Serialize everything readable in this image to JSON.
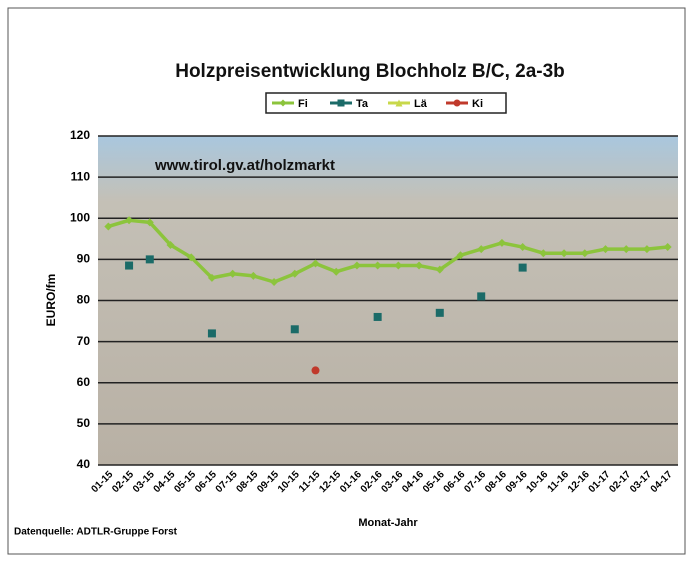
{
  "chart_data": {
    "type": "line",
    "title": "Holzpreisentwicklung Blochholz B/C, 2a-3b",
    "annotation": "www.tirol.gv.at/holzmarkt",
    "source": "Datenquelle: ADTLR-Gruppe Forst",
    "x_label": "Monat-Jahr",
    "y_label": "EURO/fm",
    "categories": [
      "01-15",
      "02-15",
      "03-15",
      "04-15",
      "05-15",
      "06-15",
      "07-15",
      "08-15",
      "09-15",
      "10-15",
      "11-15",
      "12-15",
      "01-16",
      "02-16",
      "03-16",
      "04-16",
      "05-16",
      "06-16",
      "07-16",
      "08-16",
      "09-16",
      "10-16",
      "11-16",
      "12-16",
      "01-17",
      "02-17",
      "03-17",
      "04-17"
    ],
    "series": [
      {
        "name": "Fi",
        "color": "#8cc43c",
        "marker": "diamond",
        "line": true,
        "values": [
          98,
          99.5,
          99,
          93.5,
          90.5,
          85.5,
          86.5,
          86,
          84.5,
          86.5,
          89,
          87,
          88.5,
          88.5,
          88.5,
          88.5,
          87.5,
          91,
          92.5,
          94,
          93,
          91.5,
          91.5,
          91.5,
          92.5,
          92.5,
          92.5,
          93
        ]
      },
      {
        "name": "Ta",
        "color": "#1b6b68",
        "marker": "square",
        "line": false,
        "values": [
          null,
          88.5,
          90,
          null,
          null,
          72,
          null,
          null,
          null,
          73,
          null,
          null,
          null,
          76,
          null,
          null,
          77,
          null,
          81,
          null,
          88,
          null,
          null,
          null,
          null,
          null,
          null,
          null
        ]
      },
      {
        "name": "Lä",
        "color": "#c8d84a",
        "marker": "triangle",
        "line": false,
        "values": [
          null,
          null,
          null,
          null,
          null,
          null,
          null,
          null,
          null,
          null,
          null,
          null,
          null,
          null,
          null,
          null,
          null,
          null,
          null,
          null,
          null,
          null,
          null,
          null,
          null,
          null,
          null,
          null
        ]
      },
      {
        "name": "Ki",
        "color": "#c0392b",
        "marker": "circle",
        "line": false,
        "values": [
          null,
          null,
          null,
          null,
          null,
          null,
          null,
          null,
          null,
          null,
          63,
          null,
          null,
          null,
          null,
          null,
          null,
          null,
          null,
          null,
          null,
          null,
          null,
          null,
          null,
          null,
          null,
          null
        ]
      }
    ],
    "ylim": [
      40,
      120
    ],
    "yticks": [
      40,
      50,
      60,
      70,
      80,
      90,
      100,
      110,
      120
    ],
    "grid": true,
    "legend": "top"
  }
}
